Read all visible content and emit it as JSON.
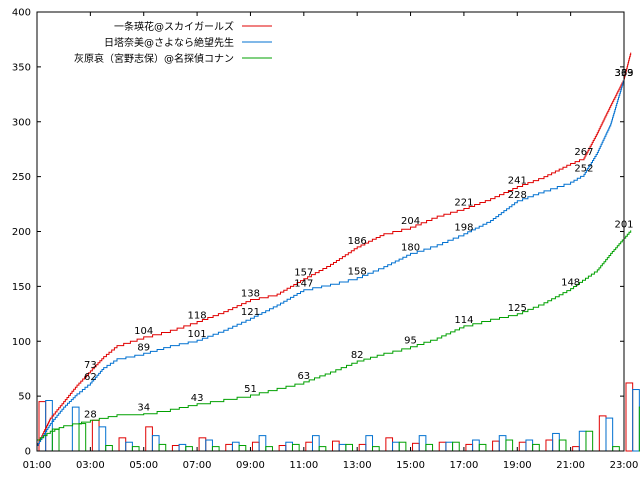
{
  "chart_data": {
    "type": "line",
    "title": "",
    "xlabel": "",
    "ylabel": "",
    "x_ticks": [
      "01:00",
      "03:00",
      "05:00",
      "07:00",
      "09:00",
      "11:00",
      "13:00",
      "15:00",
      "17:00",
      "19:00",
      "21:00",
      "23:00"
    ],
    "x_range": [
      "01:00",
      "23:00"
    ],
    "ylim": [
      0,
      400
    ],
    "y_ticks": [
      0,
      50,
      100,
      150,
      200,
      250,
      300,
      350,
      400
    ],
    "grid": false,
    "legend_position": "top-left",
    "series": [
      {
        "name": "一条瑛花@スカイガールズ",
        "color": "#e00000",
        "cumulative": [
          {
            "x": "01:00",
            "y": 5
          },
          {
            "x": "01:30",
            "y": 30
          },
          {
            "x": "02:00",
            "y": 45
          },
          {
            "x": "02:30",
            "y": 60
          },
          {
            "x": "03:00",
            "y": 73
          },
          {
            "x": "03:30",
            "y": 86
          },
          {
            "x": "04:00",
            "y": 96
          },
          {
            "x": "05:00",
            "y": 104
          },
          {
            "x": "06:00",
            "y": 110
          },
          {
            "x": "07:00",
            "y": 118
          },
          {
            "x": "08:00",
            "y": 127
          },
          {
            "x": "09:00",
            "y": 138
          },
          {
            "x": "10:00",
            "y": 143
          },
          {
            "x": "11:00",
            "y": 157
          },
          {
            "x": "12:00",
            "y": 170
          },
          {
            "x": "13:00",
            "y": 186
          },
          {
            "x": "14:00",
            "y": 198
          },
          {
            "x": "15:00",
            "y": 204
          },
          {
            "x": "16:00",
            "y": 214
          },
          {
            "x": "17:00",
            "y": 221
          },
          {
            "x": "18:00",
            "y": 230
          },
          {
            "x": "19:00",
            "y": 241
          },
          {
            "x": "20:00",
            "y": 250
          },
          {
            "x": "21:00",
            "y": 262
          },
          {
            "x": "21:30",
            "y": 267
          },
          {
            "x": "22:00",
            "y": 290
          },
          {
            "x": "22:30",
            "y": 315
          },
          {
            "x": "23:00",
            "y": 339
          },
          {
            "x": "23:15",
            "y": 363
          }
        ],
        "labels": [
          {
            "x": "03:00",
            "text": "73"
          },
          {
            "x": "05:00",
            "text": "104"
          },
          {
            "x": "07:00",
            "text": "118"
          },
          {
            "x": "09:00",
            "text": "138"
          },
          {
            "x": "11:00",
            "text": "157"
          },
          {
            "x": "13:00",
            "text": "186"
          },
          {
            "x": "15:00",
            "text": "204"
          },
          {
            "x": "17:00",
            "text": "221"
          },
          {
            "x": "19:00",
            "text": "241"
          },
          {
            "x": "21:30",
            "text": "267"
          },
          {
            "x": "23:00",
            "text": "363"
          }
        ],
        "hourly": [
          45,
          0,
          28,
          12,
          22,
          5,
          12,
          6,
          8,
          5,
          8,
          9,
          6,
          12,
          7,
          8,
          6,
          9,
          8,
          10,
          4,
          32,
          62
        ]
      },
      {
        "name": "日塔奈美@さよなら絶望先生",
        "color": "#0070d0",
        "cumulative": [
          {
            "x": "01:00",
            "y": 5
          },
          {
            "x": "01:30",
            "y": 25
          },
          {
            "x": "02:00",
            "y": 40
          },
          {
            "x": "02:30",
            "y": 52
          },
          {
            "x": "03:00",
            "y": 62
          },
          {
            "x": "03:30",
            "y": 76
          },
          {
            "x": "04:00",
            "y": 84
          },
          {
            "x": "05:00",
            "y": 89
          },
          {
            "x": "06:00",
            "y": 96
          },
          {
            "x": "07:00",
            "y": 101
          },
          {
            "x": "08:00",
            "y": 110
          },
          {
            "x": "09:00",
            "y": 121
          },
          {
            "x": "10:00",
            "y": 133
          },
          {
            "x": "11:00",
            "y": 147
          },
          {
            "x": "12:00",
            "y": 152
          },
          {
            "x": "13:00",
            "y": 158
          },
          {
            "x": "14:00",
            "y": 168
          },
          {
            "x": "15:00",
            "y": 180
          },
          {
            "x": "16:00",
            "y": 188
          },
          {
            "x": "17:00",
            "y": 198
          },
          {
            "x": "18:00",
            "y": 210
          },
          {
            "x": "19:00",
            "y": 228
          },
          {
            "x": "20:00",
            "y": 237
          },
          {
            "x": "21:00",
            "y": 245
          },
          {
            "x": "21:30",
            "y": 252
          },
          {
            "x": "22:00",
            "y": 272
          },
          {
            "x": "22:30",
            "y": 298
          },
          {
            "x": "23:00",
            "y": 339
          }
        ],
        "labels": [
          {
            "x": "03:00",
            "text": "62"
          },
          {
            "x": "05:00",
            "text": "89"
          },
          {
            "x": "07:00",
            "text": "101"
          },
          {
            "x": "09:00",
            "text": "121"
          },
          {
            "x": "11:00",
            "text": "147"
          },
          {
            "x": "13:00",
            "text": "158"
          },
          {
            "x": "15:00",
            "text": "180"
          },
          {
            "x": "17:00",
            "text": "198"
          },
          {
            "x": "19:00",
            "text": "228"
          },
          {
            "x": "21:30",
            "text": "252"
          },
          {
            "x": "23:00",
            "text": "339"
          }
        ],
        "hourly": [
          46,
          40,
          22,
          8,
          14,
          6,
          10,
          8,
          14,
          8,
          14,
          6,
          14,
          8,
          14,
          8,
          10,
          14,
          10,
          16,
          18,
          30,
          56
        ]
      },
      {
        "name": "灰原哀（宮野志保）@名探偵コナン",
        "color": "#00a000",
        "cumulative": [
          {
            "x": "01:00",
            "y": 10
          },
          {
            "x": "01:30",
            "y": 18
          },
          {
            "x": "02:00",
            "y": 23
          },
          {
            "x": "03:00",
            "y": 28
          },
          {
            "x": "04:00",
            "y": 33
          },
          {
            "x": "05:00",
            "y": 34
          },
          {
            "x": "06:00",
            "y": 38
          },
          {
            "x": "07:00",
            "y": 43
          },
          {
            "x": "08:00",
            "y": 47
          },
          {
            "x": "09:00",
            "y": 51
          },
          {
            "x": "10:00",
            "y": 57
          },
          {
            "x": "11:00",
            "y": 63
          },
          {
            "x": "12:00",
            "y": 72
          },
          {
            "x": "13:00",
            "y": 82
          },
          {
            "x": "14:00",
            "y": 89
          },
          {
            "x": "15:00",
            "y": 95
          },
          {
            "x": "16:00",
            "y": 103
          },
          {
            "x": "17:00",
            "y": 114
          },
          {
            "x": "18:00",
            "y": 120
          },
          {
            "x": "19:00",
            "y": 125
          },
          {
            "x": "20:00",
            "y": 135
          },
          {
            "x": "21:00",
            "y": 148
          },
          {
            "x": "22:00",
            "y": 165
          },
          {
            "x": "22:30",
            "y": 180
          },
          {
            "x": "23:15",
            "y": 201
          }
        ],
        "labels": [
          {
            "x": "03:00",
            "text": "28"
          },
          {
            "x": "05:00",
            "text": "34"
          },
          {
            "x": "07:00",
            "text": "43"
          },
          {
            "x": "09:00",
            "text": "51"
          },
          {
            "x": "11:00",
            "text": "63"
          },
          {
            "x": "13:00",
            "text": "82"
          },
          {
            "x": "15:00",
            "text": "95"
          },
          {
            "x": "17:00",
            "text": "114"
          },
          {
            "x": "19:00",
            "text": "125"
          },
          {
            "x": "21:00",
            "text": "148"
          },
          {
            "x": "23:00",
            "text": "201"
          }
        ],
        "hourly": [
          20,
          25,
          5,
          4,
          6,
          4,
          4,
          5,
          4,
          6,
          4,
          6,
          4,
          8,
          6,
          8,
          6,
          10,
          6,
          10,
          18,
          4,
          40
        ]
      }
    ]
  }
}
